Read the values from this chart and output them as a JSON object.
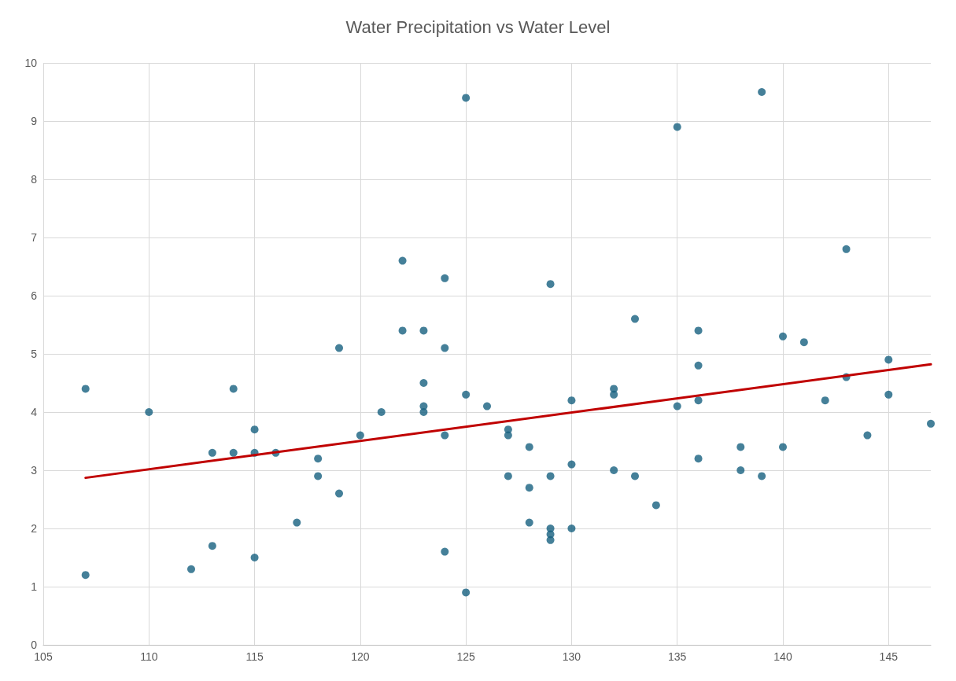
{
  "chart_data": {
    "type": "scatter",
    "title": "Water Precipitation vs Water Level",
    "xlim": [
      105,
      147
    ],
    "xticks": [
      105,
      110,
      115,
      120,
      125,
      130,
      135,
      140,
      145
    ],
    "ylim": [
      0,
      10
    ],
    "yticks": [
      0,
      1,
      2,
      3,
      4,
      5,
      6,
      7,
      8,
      9,
      10
    ],
    "grid": true,
    "marker": "circle",
    "series": [
      {
        "color": "#17607f",
        "x": [
          107,
          107,
          110,
          112,
          113,
          113,
          114,
          114,
          115,
          115,
          115,
          116,
          117,
          118,
          118,
          119,
          119,
          120,
          121,
          122,
          122,
          123,
          123,
          123,
          123,
          124,
          124,
          124,
          124,
          125,
          125,
          125,
          126,
          127,
          127,
          127,
          128,
          128,
          128,
          129,
          129,
          129,
          129,
          129,
          130,
          130,
          130,
          132,
          132,
          132,
          133,
          133,
          134,
          135,
          135,
          136,
          136,
          136,
          136,
          138,
          138,
          139,
          139,
          140,
          140,
          141,
          142,
          143,
          143,
          144,
          145,
          145,
          147
        ],
        "values": [
          1.2,
          4.4,
          4.0,
          1.3,
          3.3,
          1.7,
          4.4,
          3.3,
          3.7,
          3.3,
          1.5,
          3.3,
          2.1,
          3.2,
          2.9,
          5.1,
          2.6,
          3.6,
          4.0,
          6.6,
          5.4,
          5.4,
          4.5,
          4.1,
          4.0,
          6.3,
          5.1,
          3.6,
          1.6,
          9.4,
          4.3,
          0.9,
          4.1,
          3.7,
          3.6,
          2.9,
          3.4,
          2.7,
          2.1,
          6.2,
          2.9,
          2.0,
          1.9,
          1.8,
          4.2,
          3.1,
          2.0,
          4.4,
          4.3,
          3.0,
          5.6,
          2.9,
          2.4,
          8.9,
          4.1,
          5.4,
          4.8,
          4.2,
          3.2,
          3.4,
          3.0,
          9.5,
          2.9,
          5.3,
          3.4,
          5.2,
          4.2,
          6.8,
          4.6,
          3.6,
          4.9,
          4.3,
          3.8
        ]
      },
      {
        "type": "line",
        "color": "#c00000",
        "x": [
          107,
          147
        ],
        "values": [
          2.87,
          4.82
        ],
        "marker": "none",
        "line_style": "solid"
      }
    ]
  }
}
